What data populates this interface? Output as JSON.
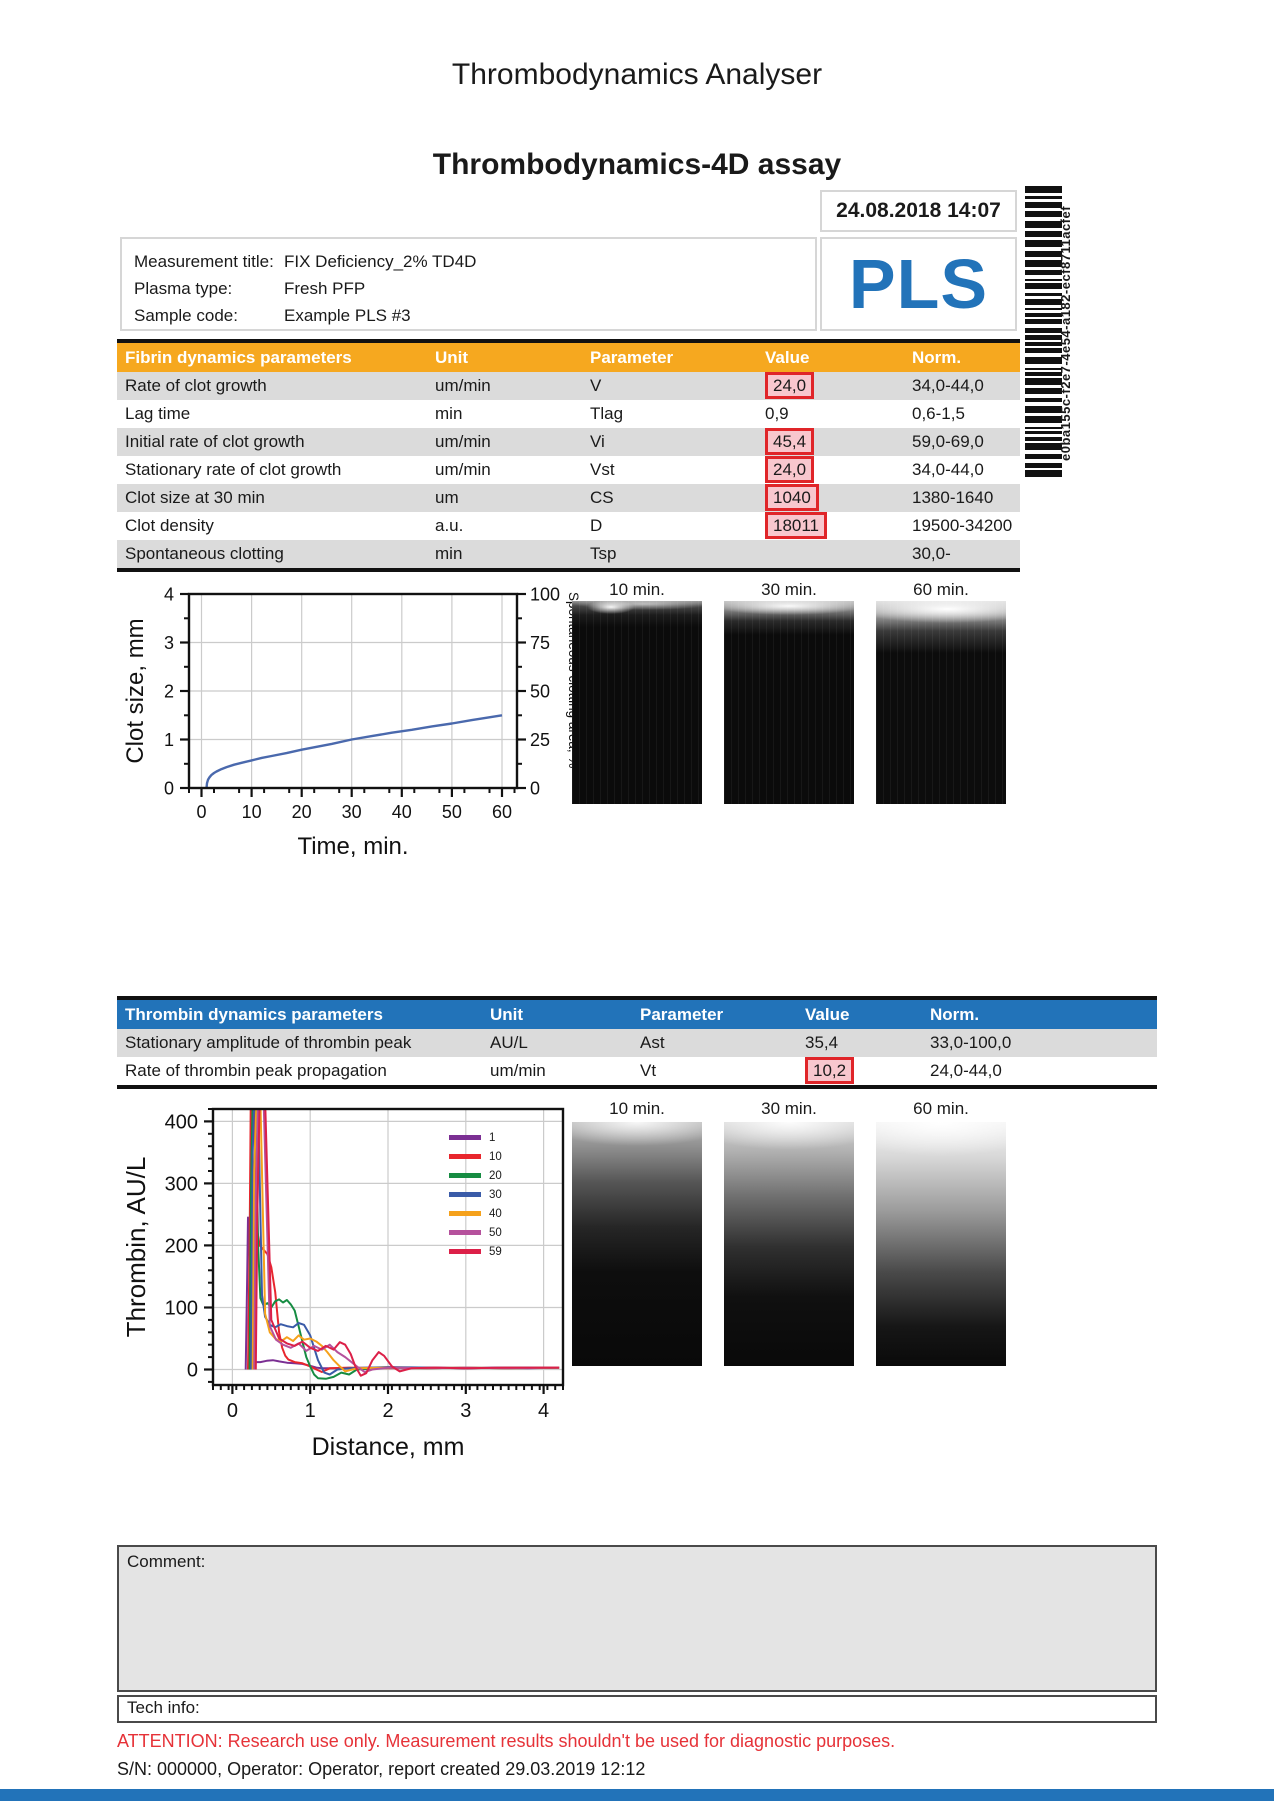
{
  "page": {
    "title": "Thrombodynamics Analyser",
    "subtitle": "Thrombodynamics-4D assay",
    "datetime": "24.08.2018 14:07",
    "comment_label": "Comment:",
    "tech_info_label": "Tech info:",
    "attention": "ATTENTION: Research use only. Measurement results shouldn't be used for diagnostic purposes.",
    "footer_info": "S/N: 000000, Operator: Operator, report created 29.03.2019 12:12"
  },
  "sample": {
    "rows": [
      {
        "label": "Measurement title:",
        "value": "FIX Deficiency_2% TD4D"
      },
      {
        "label": "Plasma type:",
        "value": "Fresh PFP"
      },
      {
        "label": "Sample code:",
        "value": "Example PLS #3"
      }
    ],
    "logo": "PLS",
    "barcode_value": "e0ba155c-f2e7-4e54-a182-ecf8711acfef"
  },
  "colors": {
    "orange_header": "#F6A81F",
    "blue_accent": "#2273B9",
    "flag_border": "#E02529",
    "flag_fill": "#F8C7CE",
    "row_alt": "#DBDBDB",
    "attention_red": "#E63238",
    "curve_blue": "#4A69AD"
  },
  "fibrin_table": {
    "header": [
      "Fibrin dynamics parameters",
      "Unit",
      "Parameter",
      "Value",
      "Norm."
    ],
    "rows": [
      {
        "name": "Rate of clot growth",
        "unit": "um/min",
        "parameter": "V",
        "value": "24,0",
        "flagged": true,
        "norm": "34,0-44,0"
      },
      {
        "name": "Lag time",
        "unit": "min",
        "parameter": "Tlag",
        "value": "0,9",
        "flagged": false,
        "norm": "0,6-1,5"
      },
      {
        "name": "Initial rate of clot growth",
        "unit": "um/min",
        "parameter": "Vi",
        "value": "45,4",
        "flagged": true,
        "norm": "59,0-69,0"
      },
      {
        "name": "Stationary rate of clot growth",
        "unit": "um/min",
        "parameter": "Vst",
        "value": "24,0",
        "flagged": true,
        "norm": "34,0-44,0"
      },
      {
        "name": "Clot size at 30 min",
        "unit": "um",
        "parameter": "CS",
        "value": "1040",
        "flagged": true,
        "norm": "1380-1640"
      },
      {
        "name": "Clot density",
        "unit": "a.u.",
        "parameter": "D",
        "value": "18011",
        "flagged": true,
        "norm": "19500-34200"
      },
      {
        "name": "Spontaneous clotting",
        "unit": "min",
        "parameter": "Tsp",
        "value": "",
        "flagged": false,
        "norm": "30,0-"
      }
    ]
  },
  "thrombin_table": {
    "header": [
      "Thrombin dynamics parameters",
      "Unit",
      "Parameter",
      "Value",
      "Norm."
    ],
    "rows": [
      {
        "name": "Stationary amplitude of thrombin peak",
        "unit": "AU/L",
        "parameter": "Ast",
        "value": "35,4",
        "flagged": false,
        "norm": "33,0-100,0"
      },
      {
        "name": "Rate of thrombin peak propagation",
        "unit": "um/min",
        "parameter": "Vt",
        "value": "10,2",
        "flagged": true,
        "norm": "24,0-44,0"
      }
    ]
  },
  "image_rows": [
    {
      "labels": [
        "10 min.",
        "30 min.",
        "60 min."
      ]
    },
    {
      "labels": [
        "10 min.",
        "30 min.",
        "60 min."
      ]
    }
  ],
  "chart_data": [
    {
      "type": "line",
      "title": "",
      "xlabel": "Time, min.",
      "ylabel": "Clot size, mm",
      "y2label": "Spontaneous clotting area, %",
      "xlim": [
        -2.5,
        63
      ],
      "ylim": [
        0,
        4
      ],
      "y2lim": [
        0,
        100
      ],
      "xticks": [
        0,
        10,
        20,
        30,
        40,
        50,
        60
      ],
      "yticks": [
        0,
        1,
        2,
        3,
        4
      ],
      "y2ticks": [
        0,
        25,
        50,
        75,
        100
      ],
      "xminor": 5,
      "yminor": 0.5,
      "y2minor": 12.5,
      "grid": true,
      "legend_position": "none",
      "series": [
        {
          "name": "Clot size",
          "color": "#4A69AD",
          "x": [
            1.0,
            1.1,
            1.3,
            1.6,
            2.0,
            2.5,
            3.0,
            4.0,
            5.0,
            6.5,
            8.0,
            10,
            12,
            14,
            17,
            20,
            23,
            26,
            30,
            34,
            38,
            42,
            46,
            50,
            54,
            57,
            60
          ],
          "y": [
            0,
            0.1,
            0.17,
            0.22,
            0.27,
            0.31,
            0.34,
            0.39,
            0.43,
            0.48,
            0.52,
            0.57,
            0.62,
            0.66,
            0.72,
            0.79,
            0.85,
            0.91,
            1.0,
            1.07,
            1.14,
            1.2,
            1.27,
            1.33,
            1.4,
            1.45,
            1.5
          ]
        }
      ]
    },
    {
      "type": "line",
      "title": "",
      "xlabel": "Distance, mm",
      "ylabel": "Thrombin, AU/L",
      "xlim": [
        -0.25,
        4.25
      ],
      "ylim": [
        -25,
        420
      ],
      "xticks": [
        0,
        1,
        2,
        3,
        4
      ],
      "yticks": [
        0,
        100,
        200,
        300,
        400
      ],
      "xminor": 0.1,
      "yminor": 20,
      "grid": true,
      "legend_position": "top-right",
      "series": [
        {
          "name": "1",
          "color": "#7B2F93",
          "x": [
            0.17,
            0.19,
            0.2,
            0.22,
            0.24,
            0.27,
            0.3,
            0.36,
            0.44,
            0.52,
            0.6,
            0.7,
            0.8,
            0.9,
            1.0,
            1.08,
            1.15,
            1.4,
            1.8,
            2.2,
            2.6,
            3.0,
            3.4,
            3.8,
            4.2
          ],
          "y": [
            0,
            150,
            245,
            180,
            70,
            25,
            12,
            12,
            14,
            15,
            13,
            11,
            10,
            9,
            6,
            3,
            2,
            2,
            3,
            2,
            3,
            2,
            3,
            2,
            3
          ]
        },
        {
          "name": "10",
          "color": "#E8262D",
          "x": [
            0.2,
            0.22,
            0.235,
            0.25,
            0.28,
            0.31,
            0.35,
            0.4,
            0.45,
            0.5,
            0.55,
            0.6,
            0.64,
            0.68,
            0.72,
            0.8,
            0.9,
            1.0,
            1.08,
            1.15,
            1.25,
            1.5,
            2.0,
            2.5,
            3.0,
            3.5,
            4.2
          ],
          "y": [
            0,
            200,
            420,
            435,
            420,
            230,
            200,
            193,
            186,
            165,
            125,
            60,
            35,
            22,
            16,
            12,
            10,
            5,
            0,
            -4,
            2,
            3,
            2,
            3,
            2,
            3,
            3
          ]
        },
        {
          "name": "20",
          "color": "#168C42",
          "x": [
            0.22,
            0.24,
            0.26,
            0.3,
            0.33,
            0.36,
            0.4,
            0.45,
            0.5,
            0.55,
            0.6,
            0.65,
            0.7,
            0.75,
            0.8,
            0.85,
            0.9,
            0.95,
            1.0,
            1.05,
            1.1,
            1.2,
            1.3,
            1.4,
            1.5,
            1.6,
            2.0,
            2.5,
            3.0,
            3.5,
            4.2
          ],
          "y": [
            0,
            300,
            435,
            435,
            200,
            115,
            103,
            107,
            100,
            110,
            113,
            108,
            112,
            105,
            95,
            70,
            45,
            20,
            5,
            -8,
            -14,
            -15,
            -12,
            -5,
            -8,
            0,
            3,
            2,
            3,
            2,
            3
          ]
        },
        {
          "name": "30",
          "color": "#3A5BA8",
          "x": [
            0.24,
            0.26,
            0.28,
            0.33,
            0.38,
            0.42,
            0.48,
            0.55,
            0.62,
            0.7,
            0.78,
            0.85,
            0.92,
            1.0,
            1.05,
            1.1,
            1.18,
            1.25,
            1.35,
            1.5,
            2.0,
            2.5,
            3.0,
            3.5,
            4.2
          ],
          "y": [
            0,
            350,
            435,
            435,
            120,
            85,
            72,
            68,
            73,
            70,
            68,
            75,
            72,
            55,
            35,
            15,
            -5,
            -8,
            0,
            2,
            4,
            3,
            2,
            3,
            3
          ]
        },
        {
          "name": "40",
          "color": "#F5A11B",
          "x": [
            0.26,
            0.28,
            0.31,
            0.36,
            0.42,
            0.48,
            0.55,
            0.62,
            0.7,
            0.78,
            0.85,
            0.92,
            1.0,
            1.08,
            1.15,
            1.22,
            1.3,
            1.38,
            1.45,
            1.6,
            2.0,
            2.5,
            3.0,
            3.5,
            4.2
          ],
          "y": [
            0,
            320,
            435,
            435,
            90,
            60,
            50,
            45,
            52,
            46,
            55,
            48,
            50,
            45,
            38,
            28,
            15,
            5,
            -3,
            2,
            3,
            2,
            3,
            2,
            3
          ]
        },
        {
          "name": "50",
          "color": "#B5519C",
          "x": [
            0.28,
            0.3,
            0.33,
            0.4,
            0.48,
            0.56,
            0.65,
            0.75,
            0.85,
            0.95,
            1.05,
            1.15,
            1.25,
            1.35,
            1.45,
            1.55,
            1.62,
            1.7,
            1.8,
            2.0,
            2.5,
            3.0,
            3.5,
            4.2
          ],
          "y": [
            0,
            280,
            435,
            435,
            70,
            48,
            40,
            35,
            42,
            30,
            38,
            32,
            40,
            28,
            20,
            10,
            3,
            -4,
            0,
            3,
            2,
            3,
            2,
            3
          ]
        },
        {
          "name": "59",
          "color": "#DC2048",
          "x": [
            0.3,
            0.32,
            0.35,
            0.42,
            0.5,
            0.6,
            0.7,
            0.8,
            0.9,
            1.0,
            1.1,
            1.2,
            1.3,
            1.38,
            1.45,
            1.52,
            1.58,
            1.65,
            1.72,
            1.8,
            1.88,
            1.95,
            2.05,
            2.15,
            2.3,
            2.6,
            3.0,
            3.5,
            4.2
          ],
          "y": [
            0,
            250,
            435,
            435,
            80,
            50,
            42,
            38,
            45,
            35,
            30,
            38,
            32,
            44,
            40,
            25,
            5,
            -10,
            -6,
            15,
            28,
            22,
            5,
            -3,
            2,
            3,
            2,
            3,
            3
          ]
        }
      ]
    }
  ]
}
